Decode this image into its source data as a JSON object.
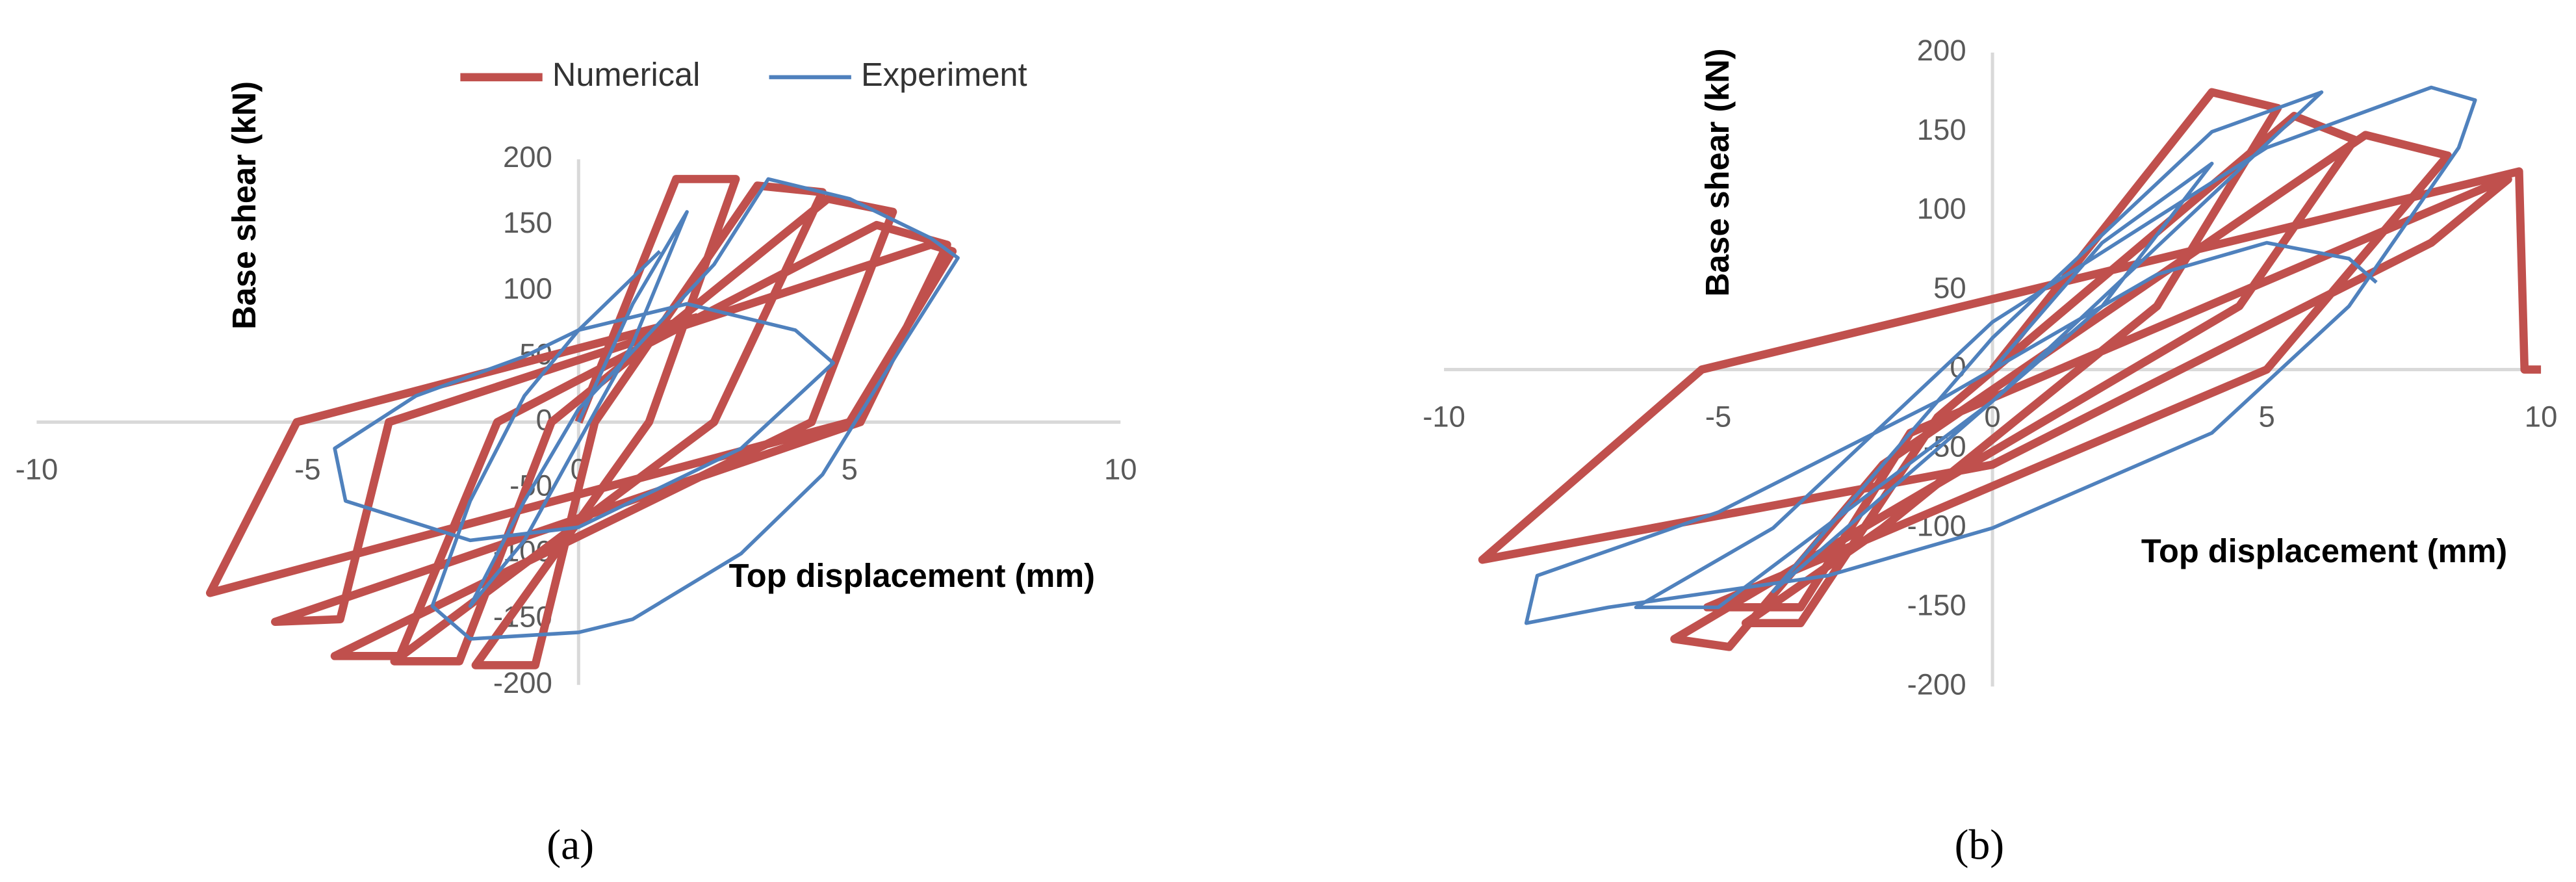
{
  "chart_data": [
    {
      "type": "line",
      "label": "(a)",
      "xlabel": "Top displacement (mm)",
      "ylabel": "Base shear (kN)",
      "xlim": [
        -10,
        10
      ],
      "xticks": [
        -10,
        -5,
        0,
        5,
        10
      ],
      "ylim": [
        -200,
        200
      ],
      "yticks": [
        -200,
        -150,
        -100,
        -50,
        0,
        50,
        100,
        150,
        200
      ],
      "grid": false,
      "legend": "top",
      "series": [
        {
          "name": "Numerical",
          "color": "#c0504d",
          "x": [
            0,
            1.8,
            2.9,
            1.3,
            -1.9,
            -0.8,
            0.3,
            3.3,
            4.5,
            2.5,
            -3.4,
            -2.2,
            -0.5,
            4.6,
            5.8,
            4.3,
            -4.5,
            -3.3,
            -1.5,
            5.5,
            6.8,
            5.2,
            -5.6,
            -4.4,
            -3.5,
            6.5,
            6.9,
            5,
            -6.8,
            -5.2,
            2.2
          ],
          "values": [
            0,
            185,
            185,
            0,
            -185,
            -185,
            0,
            180,
            175,
            0,
            -182,
            -182,
            0,
            170,
            160,
            0,
            -178,
            -178,
            0,
            150,
            135,
            0,
            -152,
            -150,
            0,
            135,
            130,
            0,
            -130,
            0,
            80
          ]
        },
        {
          "name": "Experiment",
          "color": "#4f81bd",
          "x": [
            0,
            1,
            2,
            1,
            -1,
            -2,
            -1,
            0,
            2.5,
            3.5,
            5,
            6.5,
            7,
            6,
            4.5,
            3,
            1,
            0,
            -2,
            -2.7,
            -2,
            -1,
            0,
            2,
            4,
            4.7,
            3,
            0,
            -2,
            -4.3,
            -4.5,
            -3,
            -1,
            0,
            1,
            1.5
          ],
          "values": [
            0,
            90,
            160,
            60,
            -90,
            -140,
            -60,
            10,
            120,
            185,
            170,
            140,
            125,
            60,
            -40,
            -100,
            -150,
            -160,
            -165,
            -140,
            -60,
            20,
            70,
            90,
            70,
            45,
            -20,
            -80,
            -90,
            -60,
            -20,
            20,
            50,
            70,
            110,
            130
          ]
        }
      ]
    },
    {
      "type": "line",
      "label": "(b)",
      "xlabel": "Top displacement (mm)",
      "ylabel": "Base shear (kN)",
      "xlim": [
        -10,
        10
      ],
      "xticks": [
        -10,
        -5,
        0,
        5,
        10
      ],
      "ylim": [
        -200,
        200
      ],
      "yticks": [
        -200,
        -150,
        -100,
        -50,
        0,
        50,
        100,
        150,
        200
      ],
      "grid": false,
      "legend": false,
      "series": [
        {
          "color": "#c0504d",
          "x": [
            0,
            4,
            5.2,
            3,
            -2,
            -4.5,
            -3.5,
            -1,
            5.5,
            6.6,
            4.5,
            -5.8,
            -4.8,
            -2,
            6.8,
            8.3,
            5,
            -5.2,
            -3.5,
            -1.5,
            9,
            9.4,
            8,
            0,
            -9.3,
            -5.3,
            9.6,
            9.7,
            10
          ],
          "values": [
            0,
            175,
            165,
            40,
            -100,
            -160,
            -160,
            -30,
            160,
            145,
            40,
            -170,
            -175,
            -60,
            148,
            135,
            0,
            -150,
            -150,
            -40,
            115,
            120,
            80,
            -60,
            -120,
            0,
            125,
            0,
            0
          ]
        },
        {
          "color": "#4f81bd",
          "x": [
            0,
            2,
            4,
            2,
            -2,
            -4,
            -2,
            0,
            4,
            6,
            4,
            0,
            -5,
            -6.5,
            -4,
            0,
            5,
            8,
            8.8,
            8.5,
            6.5,
            4,
            0,
            -3,
            -7,
            -8.5,
            -8.3,
            -5,
            -1,
            3,
            5,
            6.5,
            7
          ],
          "values": [
            0,
            80,
            130,
            40,
            -80,
            -140,
            -60,
            20,
            150,
            175,
            110,
            -20,
            -150,
            -150,
            -100,
            30,
            140,
            178,
            170,
            140,
            40,
            -40,
            -100,
            -130,
            -150,
            -160,
            -130,
            -90,
            -20,
            60,
            80,
            70,
            55
          ]
        }
      ]
    }
  ]
}
